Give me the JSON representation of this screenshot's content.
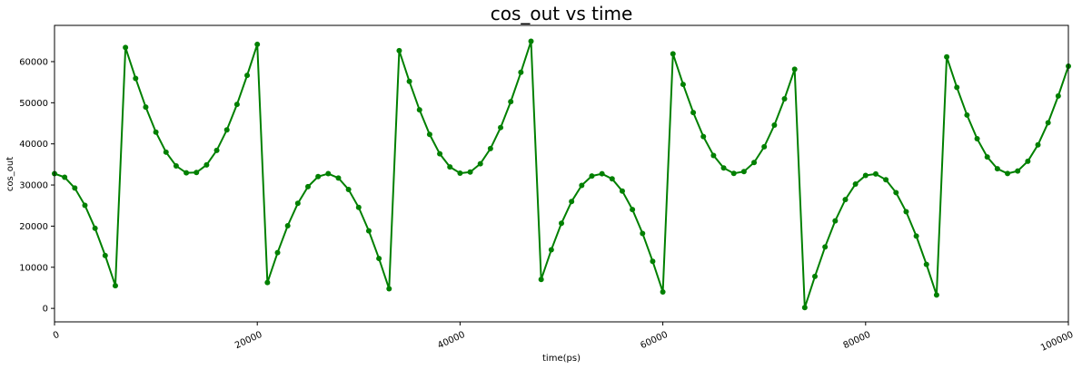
{
  "chart_data": {
    "type": "line",
    "title": "cos_out vs time",
    "x_label": "time(ps)",
    "y_label": "cos_out",
    "x": [
      0,
      1000,
      2000,
      3000,
      4000,
      5000,
      6000,
      7000,
      8000,
      9000,
      10000,
      11000,
      12000,
      13000,
      14000,
      15000,
      16000,
      17000,
      18000,
      19000,
      20000,
      21000,
      22000,
      23000,
      24000,
      25000,
      26000,
      27000,
      28000,
      29000,
      30000,
      31000,
      32000,
      33000,
      34000,
      35000,
      36000,
      37000,
      38000,
      39000,
      40000,
      41000,
      42000,
      43000,
      44000,
      45000,
      46000,
      47000,
      48000,
      49000,
      50000,
      51000,
      52000,
      53000,
      54000,
      55000,
      56000,
      57000,
      58000,
      59000,
      60000,
      61000,
      62000,
      63000,
      64000,
      65000,
      66000,
      67000,
      68000,
      69000,
      70000,
      71000,
      72000,
      73000,
      74000,
      75000,
      76000,
      77000,
      78000,
      79000,
      80000,
      81000,
      82000,
      83000,
      84000,
      85000,
      86000,
      87000,
      88000,
      89000,
      90000,
      91000,
      92000,
      93000,
      94000,
      95000,
      96000,
      97000,
      98000,
      99000,
      100000
    ],
    "series": [
      {
        "name": "cos_out",
        "color": "#008000",
        "values": [
          32767,
          31877,
          29256,
          25046,
          19472,
          12847,
          5523,
          63433,
          55921,
          48932,
          42855,
          37989,
          34630,
          32950,
          33039,
          34892,
          38408,
          43399,
          49594,
          56656,
          64197,
          6275,
          13550,
          20094,
          25536,
          29593,
          32046,
          32758,
          31691,
          28903,
          24549,
          18855,
          12141,
          4766,
          62669,
          55192,
          48276,
          42298,
          37583,
          34385,
          32878,
          33146,
          35172,
          38846,
          43969,
          50271,
          57394,
          64963,
          7025,
          14242,
          20693,
          25999,
          29914,
          32197,
          32731,
          31488,
          28535,
          24040,
          18228,
          11427,
          4008,
          61907,
          54468,
          47633,
          41768,
          37189,
          34155,
          32825,
          33271,
          35468,
          39300,
          44554,
          50952,
          58138,
          192,
          7771,
          14927,
          21280,
          26457,
          30219,
          32330,
          32686,
          31268,
          28151,
          23509,
          17583,
          10705,
          3247,
          61148,
          53751,
          47001,
          41245,
          36812,
          33943,
          32789,
          33414,
          35782,
          39771,
          45150,
          51642,
          58887
        ]
      }
    ],
    "xlim": [
      0,
      100000
    ],
    "xticks": [
      0,
      20000,
      40000,
      60000,
      80000,
      100000
    ],
    "ylim": [
      -3277,
      68812
    ],
    "yticks": [
      0,
      10000,
      20000,
      30000,
      40000,
      50000,
      60000
    ],
    "grid": false
  }
}
